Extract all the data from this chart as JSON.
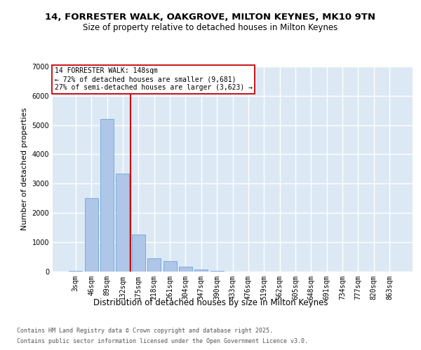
{
  "title": "14, FORRESTER WALK, OAKGROVE, MILTON KEYNES, MK10 9TN",
  "subtitle": "Size of property relative to detached houses in Milton Keynes",
  "xlabel": "Distribution of detached houses by size in Milton Keynes",
  "ylabel": "Number of detached properties",
  "categories": [
    "3sqm",
    "46sqm",
    "89sqm",
    "132sqm",
    "175sqm",
    "218sqm",
    "261sqm",
    "304sqm",
    "347sqm",
    "390sqm",
    "433sqm",
    "476sqm",
    "519sqm",
    "562sqm",
    "605sqm",
    "648sqm",
    "691sqm",
    "734sqm",
    "777sqm",
    "820sqm",
    "863sqm"
  ],
  "values": [
    2,
    2500,
    5200,
    3350,
    1250,
    450,
    350,
    150,
    50,
    15,
    0,
    0,
    0,
    0,
    0,
    0,
    0,
    0,
    0,
    0,
    0
  ],
  "bar_color": "#aec6e8",
  "bar_edge_color": "#5b9bd5",
  "background_color": "#dce9f5",
  "grid_color": "#ffffff",
  "red_line_x": 3.5,
  "red_line_color": "#cc0000",
  "annotation_line1": "14 FORRESTER WALK: 148sqm",
  "annotation_line2": "← 72% of detached houses are smaller (9,681)",
  "annotation_line3": "27% of semi-detached houses are larger (3,623) →",
  "annotation_box_color": "#ffffff",
  "annotation_border_color": "#cc0000",
  "ylim": [
    0,
    7000
  ],
  "yticks": [
    0,
    1000,
    2000,
    3000,
    4000,
    5000,
    6000,
    7000
  ],
  "footer_line1": "Contains HM Land Registry data © Crown copyright and database right 2025.",
  "footer_line2": "Contains public sector information licensed under the Open Government Licence v3.0.",
  "title_fontsize": 9.5,
  "subtitle_fontsize": 8.5,
  "ylabel_fontsize": 8,
  "xlabel_fontsize": 8.5,
  "tick_fontsize": 7,
  "footer_fontsize": 6,
  "annot_fontsize": 7
}
